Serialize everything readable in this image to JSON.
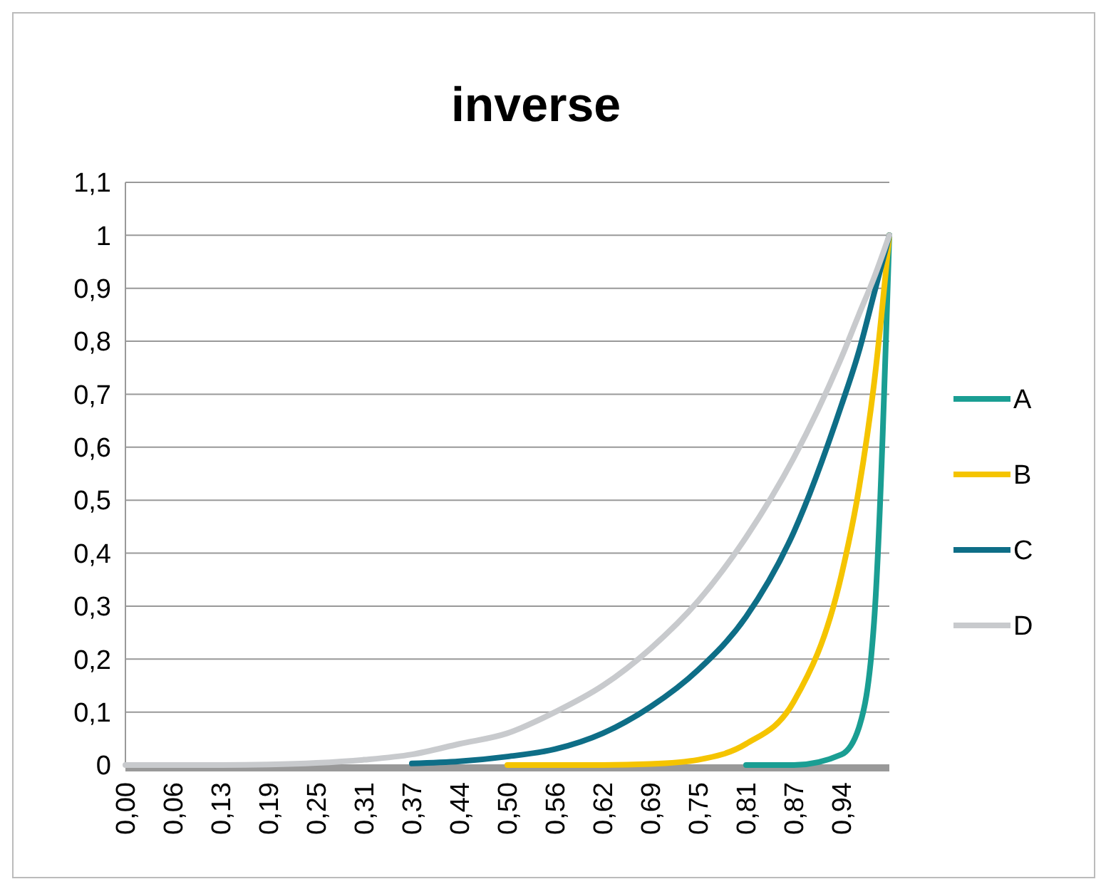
{
  "chart_data": {
    "type": "line",
    "title": "inverse",
    "x": [
      0,
      0.0625,
      0.125,
      0.1875,
      0.25,
      0.3125,
      0.375,
      0.4375,
      0.5,
      0.5625,
      0.625,
      0.6875,
      0.75,
      0.8125,
      0.875,
      0.9375,
      0.96,
      0.98,
      1
    ],
    "series": [
      {
        "name": "A",
        "color": "#1a9e93",
        "values": [
          null,
          null,
          null,
          null,
          null,
          null,
          null,
          null,
          null,
          null,
          null,
          null,
          null,
          0,
          0,
          0.02,
          0.07,
          0.27,
          1
        ]
      },
      {
        "name": "B",
        "color": "#f5c400",
        "values": [
          null,
          null,
          null,
          null,
          null,
          null,
          null,
          null,
          0,
          0,
          0,
          0.002,
          0.01,
          0.04,
          0.12,
          0.36,
          0.52,
          0.72,
          1
        ]
      },
      {
        "name": "C",
        "color": "#0e6e87",
        "values": [
          null,
          null,
          null,
          null,
          null,
          null,
          0.003,
          0.007,
          0.016,
          0.03,
          0.06,
          0.11,
          0.18,
          0.28,
          0.44,
          0.68,
          0.78,
          0.89,
          1
        ]
      },
      {
        "name": "D",
        "color": "#c8cacd",
        "values": [
          0,
          0,
          0,
          0.001,
          0.004,
          0.01,
          0.02,
          0.04,
          0.06,
          0.1,
          0.15,
          0.22,
          0.31,
          0.43,
          0.58,
          0.77,
          0.85,
          0.92,
          1
        ]
      }
    ],
    "xlim": [
      0,
      1
    ],
    "xticks": [
      {
        "value": 0,
        "label": "0,00"
      },
      {
        "value": 0.0625,
        "label": "0,06"
      },
      {
        "value": 0.125,
        "label": "0,13"
      },
      {
        "value": 0.1875,
        "label": "0,19"
      },
      {
        "value": 0.25,
        "label": "0,25"
      },
      {
        "value": 0.3125,
        "label": "0,31"
      },
      {
        "value": 0.375,
        "label": "0,37"
      },
      {
        "value": 0.4375,
        "label": "0,44"
      },
      {
        "value": 0.5,
        "label": "0,50"
      },
      {
        "value": 0.5625,
        "label": "0,56"
      },
      {
        "value": 0.625,
        "label": "0,62"
      },
      {
        "value": 0.6875,
        "label": "0,69"
      },
      {
        "value": 0.75,
        "label": "0,75"
      },
      {
        "value": 0.8125,
        "label": "0,81"
      },
      {
        "value": 0.875,
        "label": "0,87"
      },
      {
        "value": 0.9375,
        "label": "0,94"
      }
    ],
    "ylim": [
      0,
      1.1
    ],
    "yticks": [
      0,
      {
        "value": 0.1,
        "label": "0,1"
      },
      {
        "value": 0.2,
        "label": "0,2"
      },
      {
        "value": 0.3,
        "label": "0,3"
      },
      {
        "value": 0.4,
        "label": "0,4"
      },
      {
        "value": 0.5,
        "label": "0,5"
      },
      {
        "value": 0.6,
        "label": "0,6"
      },
      {
        "value": 0.7,
        "label": "0,7"
      },
      {
        "value": 0.8,
        "label": "0,8"
      },
      {
        "value": 0.9,
        "label": "0,9"
      },
      1,
      {
        "value": 1.1,
        "label": "1,1"
      }
    ],
    "grid": "y",
    "legend": "right",
    "marker": "none",
    "line_style": "solid"
  }
}
